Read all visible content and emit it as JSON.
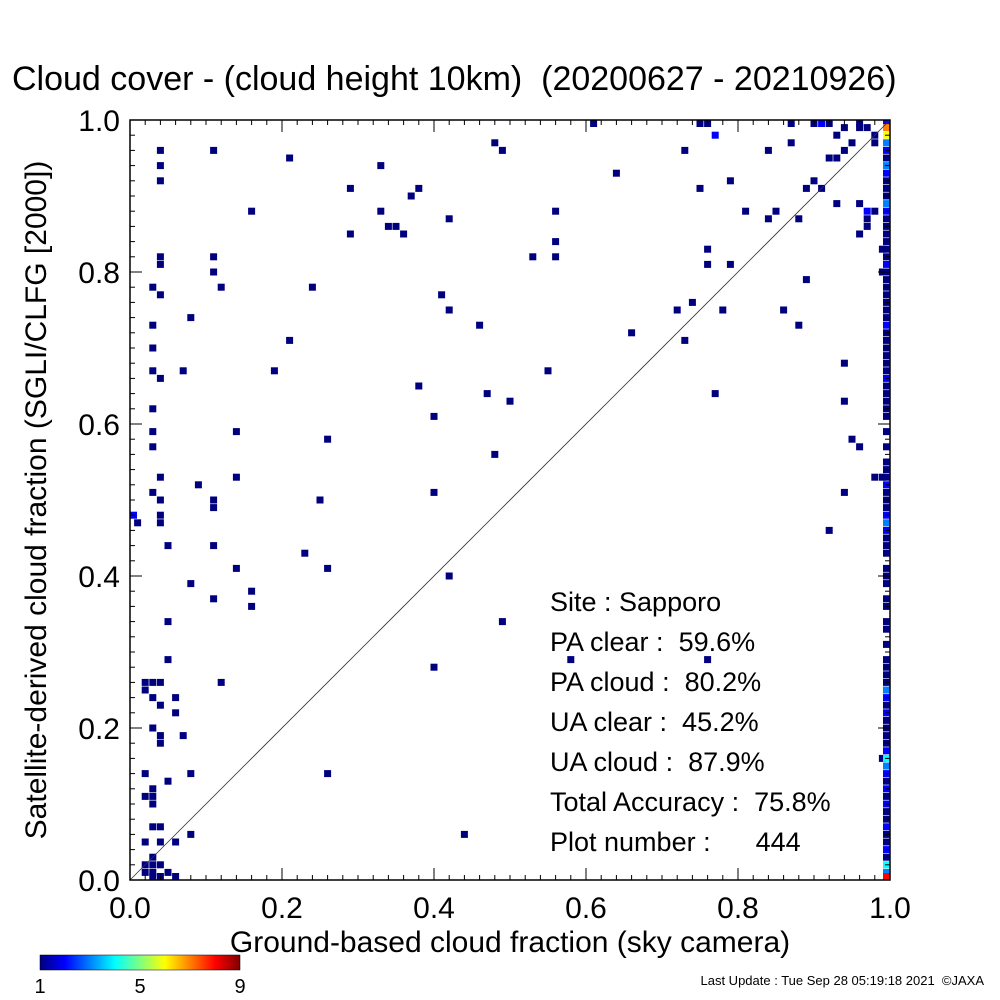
{
  "chart_data": {
    "type": "heatmap",
    "title": "Cloud cover - (cloud height 10km)  (20200627 - 20210926)",
    "xlabel": "Ground-based cloud fraction (sky camera)",
    "ylabel": "Satellite-derived cloud fraction (SGLI/CLFG [2000])",
    "xlim": [
      0,
      1
    ],
    "ylim": [
      0,
      1
    ],
    "xticks": [
      "0.0",
      "0.2",
      "0.4",
      "0.6",
      "0.8",
      "1.0"
    ],
    "yticks": [
      "0.0",
      "0.2",
      "0.4",
      "0.6",
      "0.8",
      "1.0"
    ],
    "grid": false,
    "reference_line": "1:1 diagonal",
    "colorbar": {
      "min": 1,
      "max": 9,
      "ticks": [
        "1",
        "5",
        "9"
      ],
      "colors": [
        "#00007f",
        "#0000ff",
        "#0080ff",
        "#00ffff",
        "#80ff80",
        "#ffff00",
        "#ff8000",
        "#ff0000",
        "#7f0000"
      ]
    },
    "stats": [
      {
        "label": "Site : ",
        "value": "Sapporo"
      },
      {
        "label": "PA clear :  ",
        "value": "59.6%"
      },
      {
        "label": "PA cloud :  ",
        "value": "80.2%"
      },
      {
        "label": "UA clear :  ",
        "value": "45.2%"
      },
      {
        "label": "UA cloud :  ",
        "value": "87.9%"
      },
      {
        "label": "Total Accuracy :  ",
        "value": "75.8%"
      },
      {
        "label": "Plot number :      ",
        "value": "444"
      }
    ],
    "points": [
      [
        0.04,
        0.96,
        1
      ],
      [
        0.04,
        0.94,
        1
      ],
      [
        0.04,
        0.92,
        1
      ],
      [
        0.04,
        0.82,
        1
      ],
      [
        0.04,
        0.81,
        1
      ],
      [
        0.03,
        0.78,
        1
      ],
      [
        0.04,
        0.77,
        1
      ],
      [
        0.03,
        0.73,
        1
      ],
      [
        0.03,
        0.7,
        1
      ],
      [
        0.03,
        0.67,
        1
      ],
      [
        0.04,
        0.66,
        1
      ],
      [
        0.03,
        0.62,
        1
      ],
      [
        0.03,
        0.59,
        1
      ],
      [
        0.03,
        0.57,
        1
      ],
      [
        0.04,
        0.53,
        1
      ],
      [
        0.03,
        0.51,
        1
      ],
      [
        0.04,
        0.48,
        1
      ],
      [
        0.0,
        0.48,
        2
      ],
      [
        0.01,
        0.47,
        1
      ],
      [
        0.04,
        0.47,
        1
      ],
      [
        0.04,
        0.5,
        1
      ],
      [
        0.05,
        0.44,
        1
      ],
      [
        0.05,
        0.34,
        1
      ],
      [
        0.05,
        0.29,
        1
      ],
      [
        0.02,
        0.26,
        1
      ],
      [
        0.03,
        0.26,
        1
      ],
      [
        0.04,
        0.26,
        1
      ],
      [
        0.02,
        0.25,
        1
      ],
      [
        0.03,
        0.24,
        1
      ],
      [
        0.04,
        0.23,
        1
      ],
      [
        0.06,
        0.24,
        1
      ],
      [
        0.06,
        0.22,
        1
      ],
      [
        0.03,
        0.2,
        1
      ],
      [
        0.04,
        0.19,
        1
      ],
      [
        0.04,
        0.18,
        1
      ],
      [
        0.07,
        0.19,
        1
      ],
      [
        0.02,
        0.14,
        1
      ],
      [
        0.05,
        0.13,
        1
      ],
      [
        0.03,
        0.12,
        1
      ],
      [
        0.02,
        0.11,
        1
      ],
      [
        0.03,
        0.11,
        1
      ],
      [
        0.03,
        0.1,
        1
      ],
      [
        0.03,
        0.07,
        1
      ],
      [
        0.04,
        0.07,
        1
      ],
      [
        0.02,
        0.05,
        1
      ],
      [
        0.04,
        0.05,
        1
      ],
      [
        0.03,
        0.03,
        1
      ],
      [
        0.06,
        0.05,
        1
      ],
      [
        0.02,
        0.02,
        1
      ],
      [
        0.03,
        0.02,
        1
      ],
      [
        0.04,
        0.02,
        1
      ],
      [
        0.02,
        0.01,
        1
      ],
      [
        0.03,
        0.01,
        1
      ],
      [
        0.05,
        0.01,
        1
      ],
      [
        0.03,
        0.0,
        1
      ],
      [
        0.04,
        0.0,
        1
      ],
      [
        0.06,
        0.0,
        1
      ],
      [
        0.08,
        0.06,
        1
      ],
      [
        0.08,
        0.14,
        1
      ],
      [
        0.08,
        0.39,
        1
      ],
      [
        0.09,
        0.52,
        1
      ],
      [
        0.11,
        0.5,
        1
      ],
      [
        0.11,
        0.44,
        1
      ],
      [
        0.11,
        0.37,
        1
      ],
      [
        0.11,
        0.49,
        1
      ],
      [
        0.07,
        0.67,
        1
      ],
      [
        0.08,
        0.74,
        1
      ],
      [
        0.12,
        0.26,
        1
      ],
      [
        0.11,
        0.96,
        1
      ],
      [
        0.11,
        0.82,
        1
      ],
      [
        0.11,
        0.8,
        1
      ],
      [
        0.12,
        0.78,
        1
      ],
      [
        0.14,
        0.59,
        1
      ],
      [
        0.14,
        0.53,
        1
      ],
      [
        0.14,
        0.41,
        1
      ],
      [
        0.16,
        0.38,
        1
      ],
      [
        0.16,
        0.36,
        1
      ],
      [
        0.16,
        0.88,
        1
      ],
      [
        0.19,
        0.67,
        1
      ],
      [
        0.21,
        0.95,
        1
      ],
      [
        0.21,
        0.71,
        1
      ],
      [
        0.23,
        0.43,
        1
      ],
      [
        0.24,
        0.78,
        1
      ],
      [
        0.25,
        0.5,
        1
      ],
      [
        0.26,
        0.58,
        1
      ],
      [
        0.26,
        0.41,
        1
      ],
      [
        0.26,
        0.14,
        1
      ],
      [
        0.29,
        0.91,
        1
      ],
      [
        0.29,
        0.85,
        1
      ],
      [
        0.33,
        0.94,
        1
      ],
      [
        0.33,
        0.88,
        1
      ],
      [
        0.34,
        0.86,
        1
      ],
      [
        0.35,
        0.86,
        1
      ],
      [
        0.36,
        0.85,
        1
      ],
      [
        0.37,
        0.9,
        1
      ],
      [
        0.38,
        0.91,
        1
      ],
      [
        0.38,
        0.65,
        1
      ],
      [
        0.4,
        0.61,
        1
      ],
      [
        0.4,
        0.51,
        1
      ],
      [
        0.4,
        0.28,
        1
      ],
      [
        0.41,
        0.77,
        1
      ],
      [
        0.42,
        0.87,
        1
      ],
      [
        0.42,
        0.75,
        1
      ],
      [
        0.42,
        0.4,
        1
      ],
      [
        0.44,
        0.06,
        1
      ],
      [
        0.46,
        0.73,
        1
      ],
      [
        0.47,
        0.64,
        1
      ],
      [
        0.48,
        0.97,
        1
      ],
      [
        0.49,
        0.96,
        1
      ],
      [
        0.48,
        0.56,
        1
      ],
      [
        0.49,
        0.34,
        1
      ],
      [
        0.5,
        0.63,
        1
      ],
      [
        0.53,
        0.82,
        1
      ],
      [
        0.55,
        0.67,
        1
      ],
      [
        0.56,
        0.88,
        1
      ],
      [
        0.56,
        0.84,
        1
      ],
      [
        0.56,
        0.82,
        1
      ],
      [
        0.58,
        0.29,
        1
      ],
      [
        0.61,
        1.0,
        1
      ],
      [
        0.64,
        0.93,
        1
      ],
      [
        0.66,
        0.72,
        1
      ],
      [
        0.72,
        0.75,
        1
      ],
      [
        0.73,
        0.96,
        1
      ],
      [
        0.73,
        0.71,
        1
      ],
      [
        0.74,
        0.76,
        1
      ],
      [
        0.75,
        0.91,
        1
      ],
      [
        0.76,
        0.83,
        1
      ],
      [
        0.76,
        0.81,
        1
      ],
      [
        0.76,
        0.29,
        1
      ],
      [
        0.76,
        1.0,
        1
      ],
      [
        0.75,
        1.0,
        1
      ],
      [
        0.77,
        0.98,
        2
      ],
      [
        0.77,
        0.64,
        1
      ],
      [
        0.78,
        0.75,
        1
      ],
      [
        0.79,
        0.81,
        1
      ],
      [
        0.79,
        0.92,
        1
      ],
      [
        0.81,
        0.88,
        1
      ],
      [
        0.84,
        0.96,
        1
      ],
      [
        0.84,
        0.87,
        1
      ],
      [
        0.85,
        0.88,
        1
      ],
      [
        0.86,
        0.75,
        1
      ],
      [
        0.87,
        1.0,
        1
      ],
      [
        0.87,
        0.97,
        1
      ],
      [
        0.88,
        0.87,
        1
      ],
      [
        0.88,
        0.73,
        1
      ],
      [
        0.89,
        0.79,
        1
      ],
      [
        0.89,
        0.91,
        1
      ],
      [
        0.9,
        0.92,
        1
      ],
      [
        0.91,
        0.91,
        1
      ],
      [
        0.92,
        0.95,
        1
      ],
      [
        0.93,
        0.95,
        1
      ],
      [
        0.92,
        0.46,
        1
      ],
      [
        0.93,
        0.89,
        1
      ],
      [
        0.94,
        0.68,
        1
      ],
      [
        0.94,
        0.63,
        1
      ],
      [
        0.94,
        0.51,
        1
      ],
      [
        0.95,
        0.58,
        1
      ],
      [
        0.96,
        0.57,
        1
      ],
      [
        0.96,
        0.89,
        1
      ],
      [
        0.96,
        0.85,
        1
      ],
      [
        0.97,
        0.86,
        1
      ],
      [
        0.97,
        0.87,
        1
      ],
      [
        0.97,
        0.88,
        2
      ],
      [
        0.98,
        0.88,
        1
      ],
      [
        0.99,
        0.83,
        1
      ],
      [
        0.99,
        0.8,
        1
      ],
      [
        0.98,
        0.97,
        1
      ],
      [
        0.98,
        0.98,
        1
      ],
      [
        0.97,
        0.99,
        1
      ],
      [
        0.96,
        0.99,
        1
      ],
      [
        0.96,
        1.0,
        1
      ],
      [
        0.94,
        0.99,
        1
      ],
      [
        0.92,
        1.0,
        1
      ],
      [
        0.91,
        1.0,
        2
      ],
      [
        0.9,
        1.0,
        1
      ],
      [
        0.93,
        0.98,
        1
      ],
      [
        0.94,
        0.96,
        1
      ],
      [
        0.95,
        0.97,
        1
      ],
      [
        0.99,
        0.16,
        1
      ],
      [
        0.99,
        0.53,
        1
      ],
      [
        0.98,
        0.53,
        1
      ],
      [
        1.0,
        1.0,
        2
      ],
      [
        1.0,
        0.99,
        7
      ],
      [
        1.0,
        0.98,
        6
      ],
      [
        1.0,
        0.97,
        3
      ],
      [
        1.0,
        0.96,
        2
      ],
      [
        1.0,
        0.95,
        1
      ],
      [
        1.0,
        0.94,
        3
      ],
      [
        1.0,
        0.93,
        2
      ],
      [
        1.0,
        0.92,
        1
      ],
      [
        1.0,
        0.91,
        1
      ],
      [
        1.0,
        0.9,
        1
      ],
      [
        1.0,
        0.89,
        3
      ],
      [
        1.0,
        0.88,
        2
      ],
      [
        1.0,
        0.87,
        1
      ],
      [
        1.0,
        0.86,
        1
      ],
      [
        1.0,
        0.85,
        1
      ],
      [
        1.0,
        0.84,
        1
      ],
      [
        1.0,
        0.83,
        1
      ],
      [
        1.0,
        0.82,
        1
      ],
      [
        1.0,
        0.81,
        2
      ],
      [
        1.0,
        0.8,
        1
      ],
      [
        1.0,
        0.79,
        1
      ],
      [
        1.0,
        0.78,
        1
      ],
      [
        1.0,
        0.77,
        1
      ],
      [
        1.0,
        0.76,
        1
      ],
      [
        1.0,
        0.75,
        1
      ],
      [
        1.0,
        0.74,
        1
      ],
      [
        1.0,
        0.73,
        2
      ],
      [
        1.0,
        0.72,
        1
      ],
      [
        1.0,
        0.71,
        1
      ],
      [
        1.0,
        0.7,
        1
      ],
      [
        1.0,
        0.69,
        1
      ],
      [
        1.0,
        0.68,
        1
      ],
      [
        1.0,
        0.67,
        1
      ],
      [
        1.0,
        0.66,
        2
      ],
      [
        1.0,
        0.65,
        1
      ],
      [
        1.0,
        0.64,
        1
      ],
      [
        1.0,
        0.63,
        1
      ],
      [
        1.0,
        0.62,
        1
      ],
      [
        1.0,
        0.61,
        1
      ],
      [
        1.0,
        0.59,
        1
      ],
      [
        1.0,
        0.57,
        1
      ],
      [
        1.0,
        0.55,
        1
      ],
      [
        1.0,
        0.54,
        1
      ],
      [
        1.0,
        0.53,
        1
      ],
      [
        1.0,
        0.52,
        2
      ],
      [
        1.0,
        0.51,
        1
      ],
      [
        1.0,
        0.5,
        1
      ],
      [
        1.0,
        0.49,
        1
      ],
      [
        1.0,
        0.48,
        2
      ],
      [
        1.0,
        0.47,
        3
      ],
      [
        1.0,
        0.46,
        2
      ],
      [
        1.0,
        0.45,
        1
      ],
      [
        1.0,
        0.44,
        1
      ],
      [
        1.0,
        0.43,
        1
      ],
      [
        1.0,
        0.41,
        1
      ],
      [
        1.0,
        0.4,
        1
      ],
      [
        1.0,
        0.39,
        1
      ],
      [
        1.0,
        0.37,
        1
      ],
      [
        1.0,
        0.36,
        1
      ],
      [
        1.0,
        0.34,
        1
      ],
      [
        1.0,
        0.33,
        1
      ],
      [
        1.0,
        0.31,
        1
      ],
      [
        1.0,
        0.29,
        1
      ],
      [
        1.0,
        0.28,
        1
      ],
      [
        1.0,
        0.27,
        1
      ],
      [
        1.0,
        0.26,
        1
      ],
      [
        1.0,
        0.25,
        3
      ],
      [
        1.0,
        0.24,
        2
      ],
      [
        1.0,
        0.23,
        1
      ],
      [
        1.0,
        0.22,
        2
      ],
      [
        1.0,
        0.21,
        1
      ],
      [
        1.0,
        0.2,
        1
      ],
      [
        1.0,
        0.19,
        1
      ],
      [
        1.0,
        0.18,
        1
      ],
      [
        1.0,
        0.17,
        2
      ],
      [
        1.0,
        0.16,
        4
      ],
      [
        1.0,
        0.15,
        3
      ],
      [
        1.0,
        0.14,
        2
      ],
      [
        1.0,
        0.13,
        1
      ],
      [
        1.0,
        0.12,
        2
      ],
      [
        1.0,
        0.11,
        1
      ],
      [
        1.0,
        0.1,
        2
      ],
      [
        1.0,
        0.09,
        1
      ],
      [
        1.0,
        0.08,
        1
      ],
      [
        1.0,
        0.07,
        2
      ],
      [
        1.0,
        0.06,
        1
      ],
      [
        1.0,
        0.05,
        1
      ],
      [
        1.0,
        0.04,
        2
      ],
      [
        1.0,
        0.03,
        1
      ],
      [
        1.0,
        0.02,
        4
      ],
      [
        1.0,
        0.01,
        3
      ],
      [
        1.0,
        0.0,
        8
      ]
    ]
  },
  "footer": {
    "last_update": "Last Update : Tue Sep 28 05:19:18 2021  ©JAXA"
  }
}
